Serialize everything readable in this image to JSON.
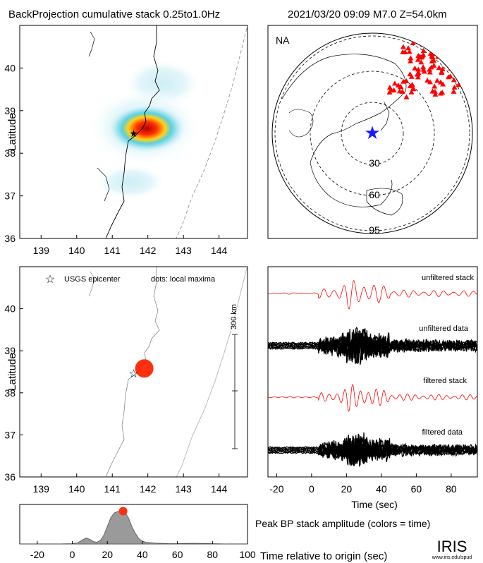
{
  "header": {
    "title": "BackProjection cumulative stack 0.25to1.0Hz",
    "event": "2021/03/20 09:09   M7.0   Z=54.0km"
  },
  "map_top": {
    "ylabel": "Latitude",
    "xticks": [
      "139",
      "140",
      "141",
      "142",
      "143",
      "144"
    ],
    "yticks": [
      "36",
      "37",
      "38",
      "39",
      "40"
    ],
    "xlim": [
      138.4,
      144.8
    ],
    "ylim": [
      36,
      41
    ],
    "epicenter": {
      "lon": 141.6,
      "lat": 38.47
    }
  },
  "globe": {
    "label": "NA",
    "ring_labels": [
      "30",
      "60",
      "95"
    ],
    "colors": {
      "stations": "#ff0000",
      "epicenter": "#1a1aff"
    }
  },
  "map_bottom": {
    "ylabel": "Latitude",
    "legend_epicenter": "USGS epicenter",
    "legend_dots": "dots: local maxima",
    "scale_label": "300 km",
    "xticks": [
      "139",
      "140",
      "141",
      "142",
      "143",
      "144"
    ],
    "yticks": [
      "36",
      "37",
      "38",
      "39",
      "40"
    ],
    "epicenter": {
      "lon": 141.6,
      "lat": 38.47
    },
    "local_maxima": [
      {
        "lon": 141.9,
        "lat": 38.58,
        "color": "#ff3010"
      }
    ]
  },
  "traces": {
    "labels": [
      "unfiltered stack",
      "unfiltered data",
      "filtered stack",
      "filtered data"
    ],
    "xlabel": "Time (sec)",
    "xticks": [
      "-20",
      "0",
      "20",
      "40",
      "60",
      "80"
    ],
    "xlim": [
      -25,
      95
    ],
    "colors": {
      "stack": "#ff0000",
      "data": "#000000"
    }
  },
  "peak_caption": "Peak BP stack amplitude (colors = time)",
  "time_caption": "Time relative to origin (sec)",
  "logo": {
    "text": "IRIS",
    "url": "www.iris.edu/spud"
  },
  "chart_data": {
    "type": "area",
    "title": "",
    "xlabel": "",
    "ylabel": "",
    "xlim": [
      -30,
      100
    ],
    "ylim": [
      0,
      1
    ],
    "x": [
      -30,
      -20,
      -10,
      0,
      3,
      6,
      8,
      10,
      12,
      14,
      16,
      18,
      20,
      22,
      24,
      26,
      28,
      30,
      32,
      34,
      36,
      38,
      40,
      42,
      44,
      46,
      48,
      50,
      55,
      60,
      70,
      80,
      90,
      100
    ],
    "values": [
      0,
      0,
      0,
      0.01,
      0.03,
      0.12,
      0.17,
      0.13,
      0.07,
      0.05,
      0.1,
      0.25,
      0.5,
      0.75,
      0.88,
      0.92,
      0.95,
      0.9,
      0.75,
      0.5,
      0.3,
      0.15,
      0.08,
      0.05,
      0.04,
      0.03,
      0.02,
      0.02,
      0.01,
      0.01,
      0.02,
      0.01,
      0,
      0
    ],
    "peak": {
      "x": 29,
      "value": 0.97,
      "color": "#ff3010"
    },
    "xticks": [
      "-20",
      "0",
      "20",
      "40",
      "60",
      "80",
      "100"
    ],
    "fill": "#9a9a9a"
  }
}
